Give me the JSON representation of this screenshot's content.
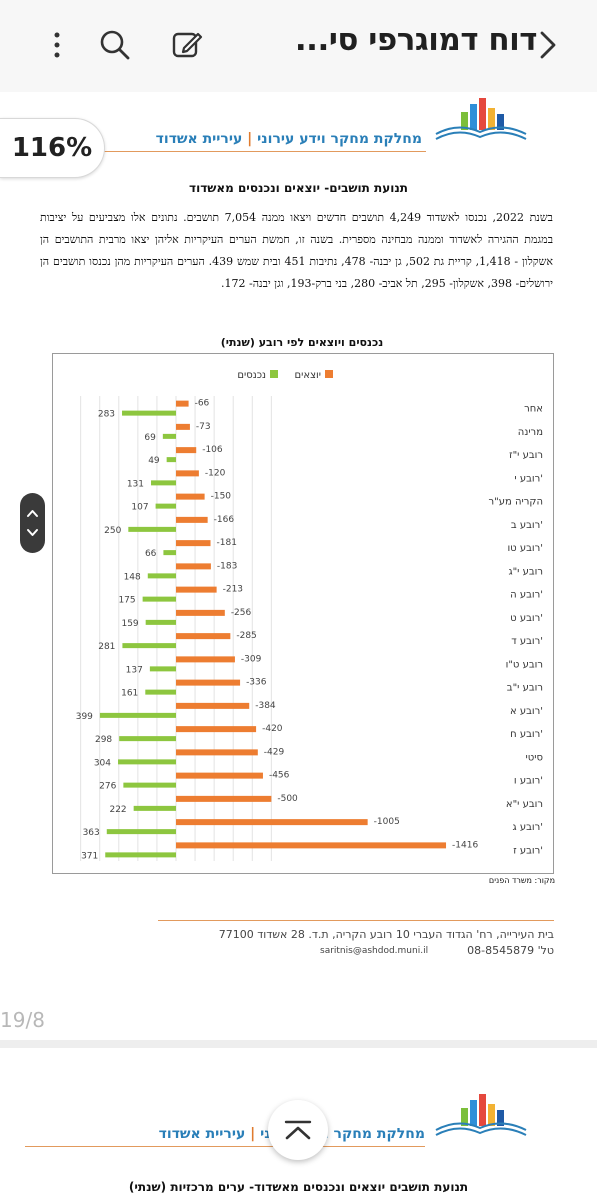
{
  "toolbar": {
    "title": "דוח דמוגרפי סי...",
    "back_icon": "chevron-right-icon",
    "more_icon": "more-vertical-icon",
    "search_icon": "search-icon",
    "edit_icon": "edit-icon"
  },
  "zoom_label": "116%",
  "header": {
    "dept": "מחלקת מחקר וידע עירוני",
    "sep": "|",
    "city": "עיריית אשדוד",
    "line_color": "#e29a5d",
    "text_color": "#2a7fb8"
  },
  "page": {
    "title": "תנועת תושבים- יוצאים ונכנסים מאשדוד",
    "paragraph": "בשנת 2022, נכנסו לאשדוד 4,249 תושבים חדשים ויצאו ממנה 7,054 תושבים. נתונים אלו מצביעים על יציבות במגמת ההגירה לאשדוד וממנה מבחינה מספרית. בשנה זו, חמשת הערים העיקריות אליהן יצאו מרבית התושבים הן אשקלון - 1,418, קריית גת 502, גן יבנה- 478, נתיבות 451 ובית שמש 439. הערים העיקריות מהן נכנסו תושבים הן ירושלים- 398, אשקלון- 295, תל אביב- 280, בני ברק-193, וגן יבנה- 172."
  },
  "chart_data": {
    "type": "bar",
    "orientation": "horizontal",
    "title": "נכנסים ויוצאים לפי רובע (שנתי)",
    "legend_position": "top",
    "grid": true,
    "categories": [
      "אחר",
      "מרינה",
      "רובע י\"ז",
      "רובע י'",
      "הקריה מע\"ר",
      "רובע ב'",
      "רובע טו'",
      "רובע י\"ג",
      "רובע ה'",
      "רובע ט'",
      "רובע ד'",
      "רובע ט\"ו",
      "רובע י\"ב",
      "רובע א'",
      "רובע ח'",
      "סיטי",
      "רובע ו'",
      "רובע י\"א",
      "רובע ג'",
      "רובע ז'"
    ],
    "series": [
      {
        "name": "יוצאים",
        "color": "#ed7d31",
        "values": [
          -66,
          -73,
          -106,
          -120,
          -150,
          -166,
          -181,
          -183,
          -213,
          -256,
          -285,
          -309,
          -336,
          -384,
          -420,
          -429,
          -456,
          -500,
          -1005,
          -1416
        ]
      },
      {
        "name": "נכנסים",
        "color": "#8dc63f",
        "values": [
          283,
          69,
          49,
          131,
          107,
          250,
          66,
          148,
          175,
          159,
          281,
          137,
          161,
          399,
          298,
          304,
          276,
          222,
          363,
          371
        ]
      }
    ],
    "source": "מקור: משרד הפנים"
  },
  "footer": {
    "address": "בית העירייה, רח' הגדוד העברי 10 רובע הקריה, ת.ד. 28 אשדוד 77100",
    "phone_label": "טל'",
    "phone": "08-8545879",
    "email": "saritnis@ashdod.muni.il"
  },
  "page_indicator": "19/8",
  "next_page": {
    "title": "תנועת תושבים יוצאים ונכנסים מאשדוד- ערים מרכזיות (שנתי)",
    "header_dept": "מחלקת מחקר וידע עירוני",
    "header_city": "עיריית אשדוד"
  },
  "icons": {
    "scroll_up": "chevron-up-icon",
    "scroll_down": "chevron-down-icon",
    "fab": "chevron-up-bar-icon"
  }
}
